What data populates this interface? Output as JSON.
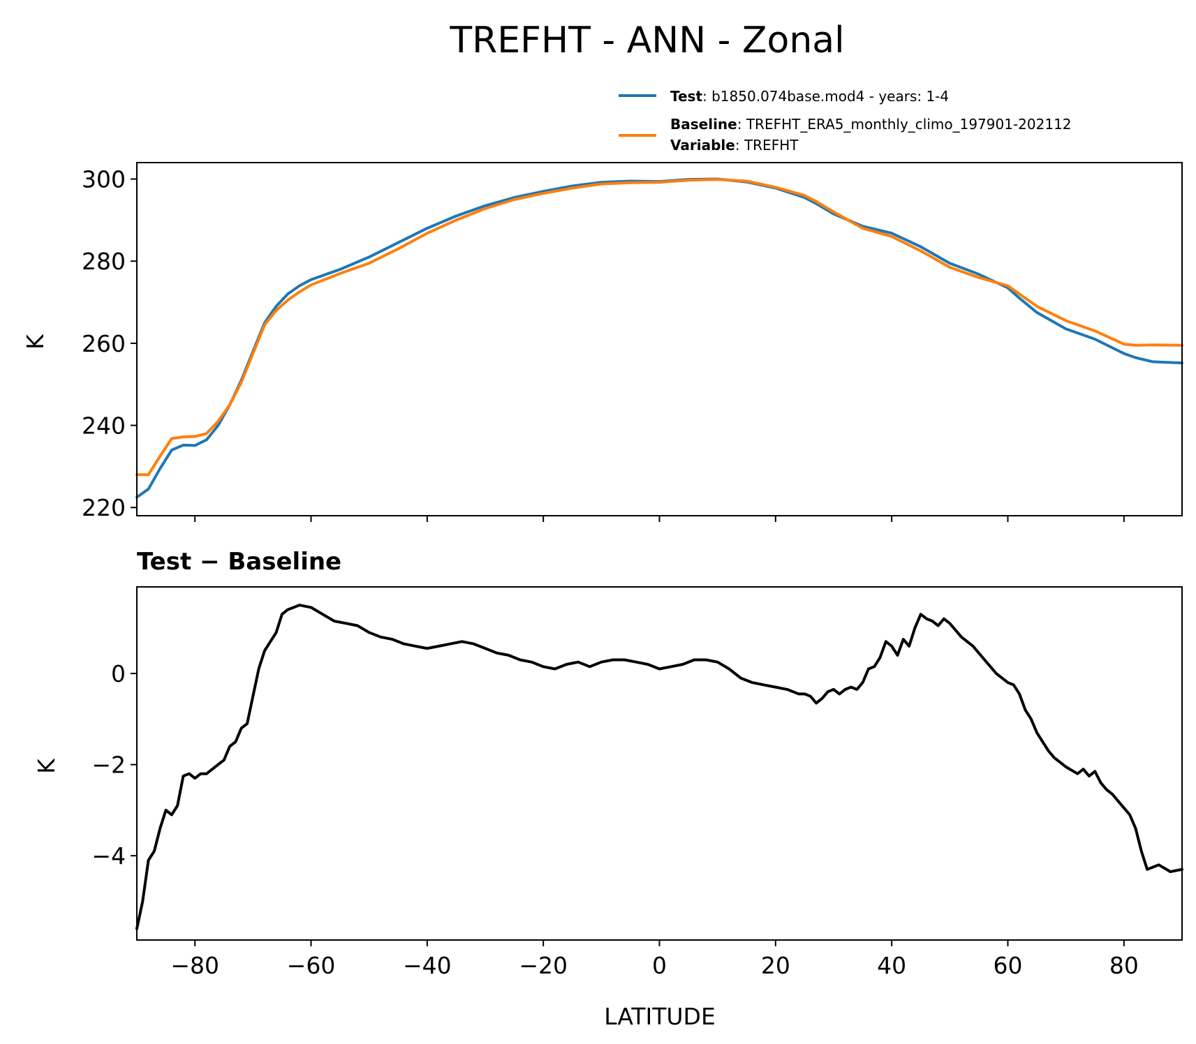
{
  "chart_data": [
    {
      "type": "line",
      "title": "TREFHT - ANN - Zonal",
      "xlabel": "",
      "ylabel": "K",
      "xlim": [
        -90,
        90
      ],
      "ylim": [
        218,
        304
      ],
      "xticks": [
        -80,
        -60,
        -40,
        -20,
        0,
        20,
        40,
        60,
        80
      ],
      "yticks": [
        220,
        240,
        260,
        280,
        300
      ],
      "ytick_labels": [
        "220",
        "240",
        "260",
        "280",
        "300"
      ],
      "grid": false,
      "legend_position": "above-right",
      "legend": [
        {
          "series": "Test",
          "label_bold": "Test",
          "label_rest": ": b1850.074base.mod4 - years: 1-4",
          "color": "#1f77b4"
        },
        {
          "series": "Baseline",
          "label_bold": "Baseline",
          "label_rest": ": TREFHT_ERA5_monthly_climo_197901-202112",
          "label2_bold": "Variable",
          "label2_rest": ": TREFHT",
          "color": "#ff7f0e"
        }
      ],
      "x": [
        -90,
        -88,
        -86,
        -84,
        -82,
        -80,
        -78,
        -76,
        -74,
        -72,
        -70,
        -68,
        -66,
        -64,
        -62,
        -60,
        -55,
        -50,
        -45,
        -40,
        -35,
        -30,
        -25,
        -20,
        -15,
        -10,
        -5,
        0,
        5,
        10,
        15,
        20,
        25,
        27,
        30,
        35,
        40,
        45,
        50,
        55,
        60,
        62,
        65,
        70,
        75,
        80,
        82,
        85,
        90
      ],
      "series": [
        {
          "name": "Test",
          "color": "#1f77b4",
          "values": [
            222.5,
            224.5,
            229.5,
            234.0,
            235.2,
            235.1,
            236.5,
            240.0,
            245.0,
            251.0,
            258.0,
            265.0,
            269.0,
            272.0,
            274.0,
            275.5,
            278.0,
            281.0,
            284.5,
            288.0,
            291.0,
            293.5,
            295.5,
            297.0,
            298.3,
            299.2,
            299.5,
            299.4,
            299.9,
            300.0,
            299.3,
            297.8,
            295.5,
            294.0,
            291.5,
            288.5,
            286.8,
            283.5,
            279.5,
            276.8,
            273.5,
            271.0,
            267.5,
            263.5,
            261.0,
            257.5,
            256.5,
            255.5,
            255.2
          ]
        },
        {
          "name": "Baseline",
          "color": "#ff7f0e",
          "values": [
            228.0,
            228.0,
            232.5,
            236.8,
            237.2,
            237.3,
            238.0,
            241.0,
            245.0,
            250.5,
            257.5,
            264.5,
            268.0,
            270.5,
            272.5,
            274.2,
            277.0,
            279.5,
            283.0,
            286.8,
            290.0,
            292.8,
            295.0,
            296.5,
            297.8,
            298.8,
            299.1,
            299.2,
            299.7,
            299.9,
            299.5,
            298.0,
            296.0,
            294.5,
            292.0,
            288.0,
            286.0,
            282.5,
            278.5,
            276.0,
            274.0,
            272.0,
            269.0,
            265.5,
            263.0,
            259.8,
            259.5,
            259.6,
            259.5
          ]
        }
      ]
    },
    {
      "type": "line",
      "title": "Test − Baseline",
      "xlabel": "LATITUDE",
      "ylabel": "K",
      "xlim": [
        -90,
        90
      ],
      "ylim": [
        -5.85,
        1.9
      ],
      "xticks": [
        -80,
        -60,
        -40,
        -20,
        0,
        20,
        40,
        60,
        80
      ],
      "xtick_labels": [
        "−80",
        "−60",
        "−40",
        "−20",
        "0",
        "20",
        "40",
        "60",
        "80"
      ],
      "yticks": [
        -4,
        -2,
        0
      ],
      "ytick_labels": [
        "−4",
        "−2",
        "0"
      ],
      "grid": false,
      "x": [
        -90,
        -89,
        -88,
        -87,
        -86,
        -85,
        -84,
        -83,
        -82,
        -81,
        -80,
        -79,
        -78,
        -77,
        -76,
        -75,
        -74,
        -73,
        -72,
        -71,
        -70,
        -69,
        -68,
        -67,
        -66,
        -65,
        -64,
        -62,
        -60,
        -58,
        -56,
        -54,
        -52,
        -50,
        -48,
        -46,
        -44,
        -42,
        -40,
        -38,
        -36,
        -34,
        -32,
        -30,
        -28,
        -26,
        -24,
        -22,
        -20,
        -18,
        -16,
        -14,
        -12,
        -10,
        -8,
        -6,
        -4,
        -2,
        0,
        2,
        4,
        6,
        8,
        10,
        12,
        14,
        16,
        18,
        20,
        22,
        24,
        25,
        26,
        27,
        28,
        29,
        30,
        31,
        32,
        33,
        34,
        35,
        36,
        37,
        38,
        39,
        40,
        41,
        42,
        43,
        44,
        45,
        46,
        47,
        48,
        49,
        50,
        52,
        54,
        56,
        58,
        60,
        61,
        62,
        63,
        64,
        65,
        66,
        67,
        68,
        70,
        72,
        73,
        74,
        75,
        76,
        77,
        78,
        79,
        80,
        81,
        82,
        83,
        84,
        86,
        88,
        90
      ],
      "series": [
        {
          "name": "Test − Baseline",
          "color": "#000000",
          "values": [
            -5.6,
            -5.0,
            -4.1,
            -3.9,
            -3.4,
            -3.0,
            -3.1,
            -2.9,
            -2.25,
            -2.2,
            -2.3,
            -2.2,
            -2.2,
            -2.1,
            -2.0,
            -1.9,
            -1.6,
            -1.5,
            -1.2,
            -1.1,
            -0.5,
            0.1,
            0.5,
            0.7,
            0.9,
            1.3,
            1.4,
            1.5,
            1.45,
            1.3,
            1.15,
            1.1,
            1.05,
            0.9,
            0.8,
            0.75,
            0.65,
            0.6,
            0.55,
            0.6,
            0.65,
            0.7,
            0.65,
            0.55,
            0.45,
            0.4,
            0.3,
            0.25,
            0.15,
            0.1,
            0.2,
            0.25,
            0.15,
            0.25,
            0.3,
            0.3,
            0.25,
            0.2,
            0.1,
            0.15,
            0.2,
            0.3,
            0.3,
            0.25,
            0.1,
            -0.1,
            -0.2,
            -0.25,
            -0.3,
            -0.35,
            -0.45,
            -0.45,
            -0.5,
            -0.65,
            -0.55,
            -0.4,
            -0.35,
            -0.45,
            -0.35,
            -0.3,
            -0.35,
            -0.2,
            0.1,
            0.15,
            0.35,
            0.7,
            0.6,
            0.4,
            0.75,
            0.6,
            1.0,
            1.3,
            1.2,
            1.15,
            1.05,
            1.2,
            1.1,
            0.8,
            0.6,
            0.3,
            0.0,
            -0.2,
            -0.25,
            -0.45,
            -0.8,
            -1.0,
            -1.3,
            -1.5,
            -1.7,
            -1.85,
            -2.05,
            -2.2,
            -2.1,
            -2.25,
            -2.15,
            -2.4,
            -2.55,
            -2.65,
            -2.8,
            -2.95,
            -3.1,
            -3.4,
            -3.9,
            -4.3,
            -4.2,
            -4.35,
            -4.3
          ]
        }
      ]
    }
  ]
}
